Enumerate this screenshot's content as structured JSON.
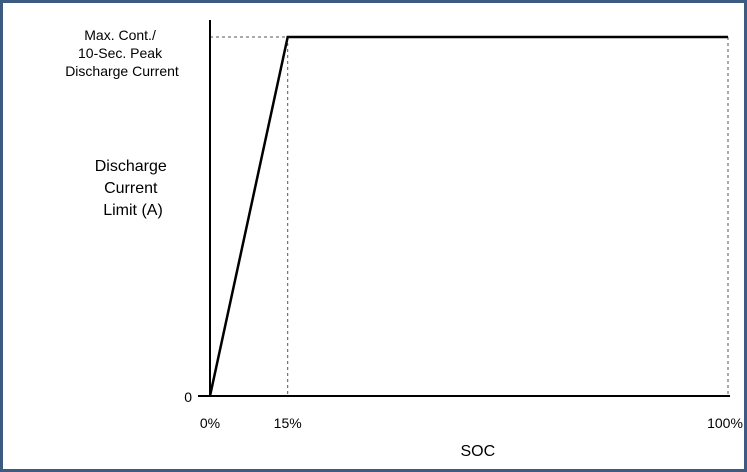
{
  "chart_data": {
    "type": "line",
    "xlabel": "SOC",
    "ylabel_lines": [
      "Discharge",
      "Current",
      "Limit (A)"
    ],
    "x_ticks": [
      {
        "value": 0,
        "label": "0%"
      },
      {
        "value": 15,
        "label": "15%"
      },
      {
        "value": 100,
        "label": "100%"
      }
    ],
    "y_ticks": [
      {
        "value": 0,
        "label": "0"
      },
      {
        "value": 1,
        "label_lines": [
          "Max. Cont./",
          "10-Sec. Peak",
          "Discharge Current"
        ]
      }
    ],
    "xlim": [
      0,
      100
    ],
    "ylim": [
      0,
      1
    ],
    "series": [
      {
        "x": [
          0,
          15,
          100
        ],
        "y": [
          0,
          1,
          1
        ]
      }
    ],
    "reference_lines": [
      {
        "orientation": "vertical",
        "x": 15,
        "style": "dashed"
      },
      {
        "orientation": "vertical",
        "x": 100,
        "style": "dashed"
      },
      {
        "orientation": "horizontal",
        "y": 1,
        "style": "dashed"
      }
    ],
    "grid": false,
    "colors": {
      "line": "#000000",
      "frame_border": "#3d5a80"
    }
  }
}
